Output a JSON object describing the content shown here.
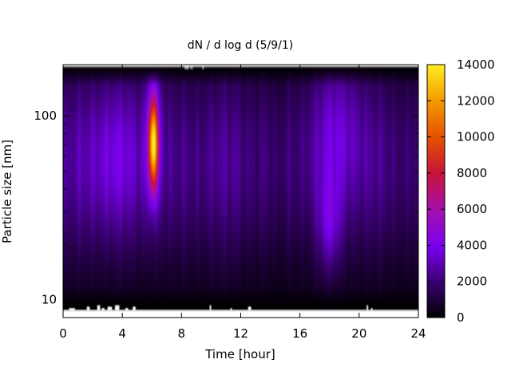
{
  "chart_data": {
    "type": "heatmap",
    "title": "dN / d log d (5/9/1)",
    "xlabel": "Time [hour]",
    "ylabel": "Particle size [nm]",
    "x_range": [
      0,
      24
    ],
    "x_ticks": [
      0,
      4,
      8,
      12,
      16,
      20,
      24
    ],
    "y_scale": "log",
    "y_range": [
      8,
      190
    ],
    "y_ticks": [
      10,
      100
    ],
    "data_size_range_nm": [
      8.8,
      185
    ],
    "colorbar": {
      "range": [
        0,
        14000
      ],
      "ticks": [
        0,
        2000,
        4000,
        6000,
        8000,
        10000,
        12000,
        14000
      ],
      "palette": "gnuplot black-blue-violet-red-orange-yellow"
    },
    "features": [
      {
        "x": 6.1,
        "y": 70,
        "value": 12500,
        "desc": "peak"
      },
      {
        "x": 3.5,
        "y": 60,
        "value": 3800
      },
      {
        "x": 18.0,
        "y": 25,
        "value": 3500
      },
      {
        "x": 18.5,
        "y": 90,
        "value": 3300
      }
    ],
    "missing_data_strips": "white gaps along lower (~9 nm) and upper (~185 nm) edges"
  }
}
